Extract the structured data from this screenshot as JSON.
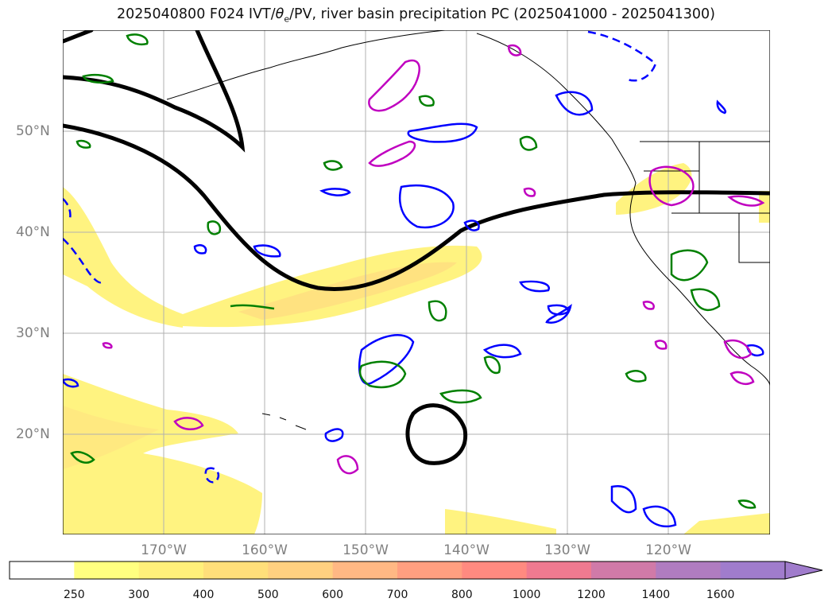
{
  "title_prefix": "2025040800 F024 IVT/",
  "title_theta": "θ",
  "title_sub": "e",
  "title_suffix": "/PV, river basin precipitation PC (2025041000 - 2025041300)",
  "lat_labels": [
    "50°N",
    "40°N",
    "30°N",
    "20°N"
  ],
  "lon_labels": [
    "170°W",
    "160°W",
    "150°W",
    "140°W",
    "130°W",
    "120°W"
  ],
  "colorbar": {
    "levels": [
      "250",
      "300",
      "400",
      "500",
      "600",
      "700",
      "800",
      "1000",
      "1200",
      "1400",
      "1600"
    ],
    "colors": [
      "#ffffff",
      "#ffff80",
      "#fff07a",
      "#ffdf7a",
      "#ffd080",
      "#ffb884",
      "#ff9f80",
      "#ff8a80",
      "#ef7a90",
      "#d07aa8",
      "#b07cc0",
      "#a07ccc"
    ],
    "extend": "max"
  },
  "colors": {
    "ivt_fill": "#fff380",
    "theta_e": "#008000",
    "pv": "#0000ff",
    "precip_pc": "#c000c0",
    "jet": "#000000",
    "grid": "#b0b0b0",
    "coast": "#000000"
  }
}
